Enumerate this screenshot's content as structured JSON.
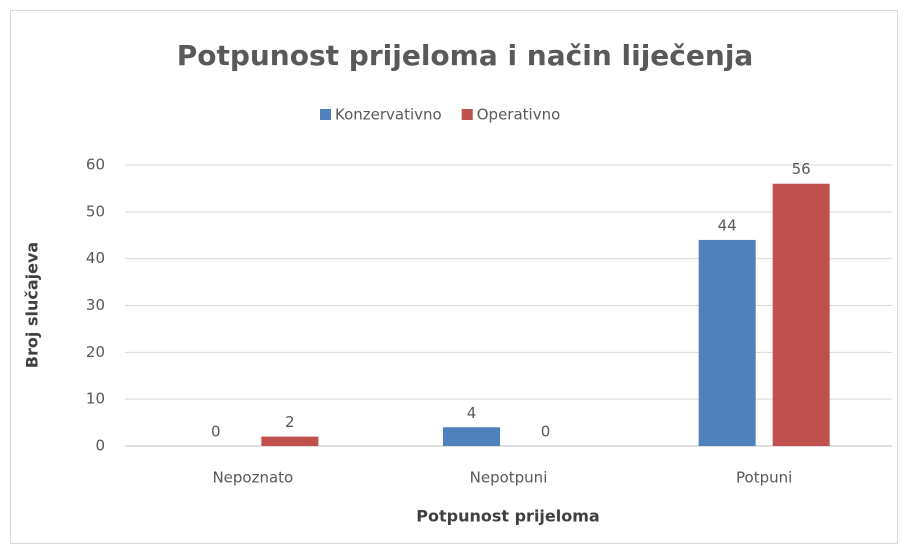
{
  "chart_data": {
    "type": "bar",
    "title": "Potpunost prijeloma i način liječenja",
    "x_label": "Potpunost prijeloma",
    "y_label": "Broj slučajeva",
    "categories": [
      "Nepoznato",
      "Nepotpuni",
      "Potpuni"
    ],
    "series": [
      {
        "name": "Konzervativno",
        "color": "#4f81bd",
        "values": [
          0,
          4,
          44
        ]
      },
      {
        "name": "Operativno",
        "color": "#c0504d",
        "values": [
          2,
          0,
          56
        ]
      }
    ],
    "ylim": [
      0,
      60
    ],
    "yticks": [
      0,
      10,
      20,
      30,
      40,
      50,
      60
    ],
    "grid": true,
    "legend": "top"
  }
}
